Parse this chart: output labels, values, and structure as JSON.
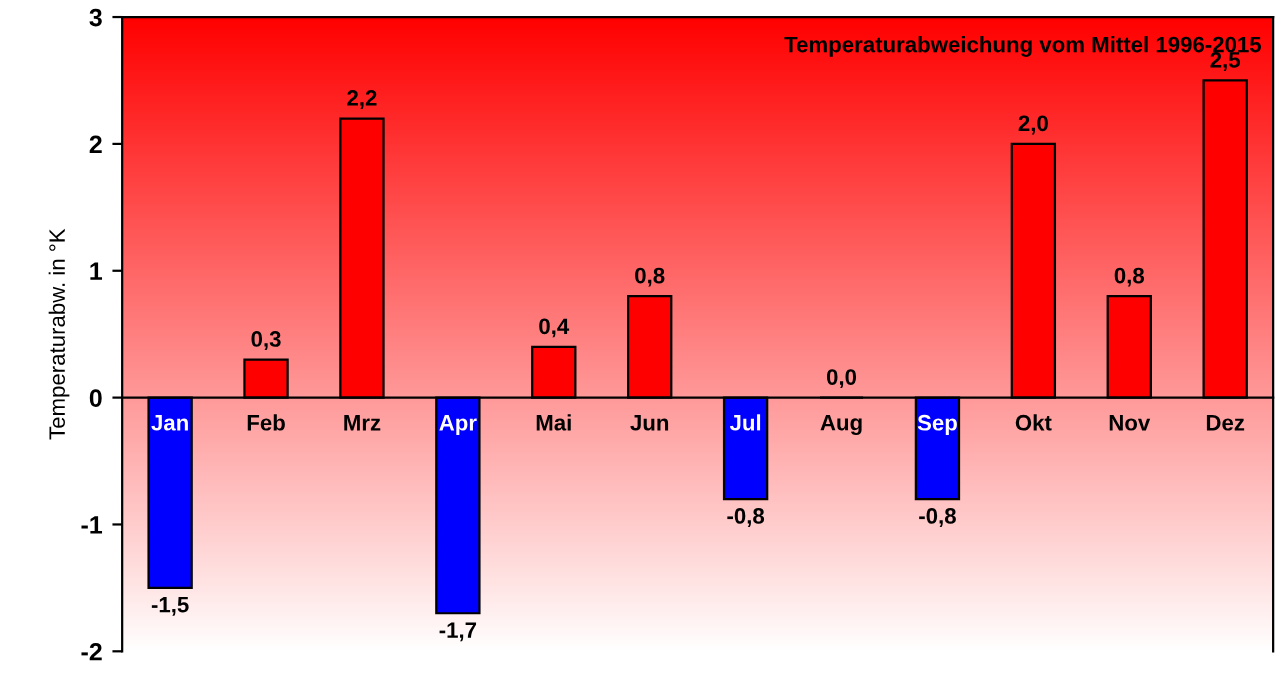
{
  "chart_data": {
    "type": "bar",
    "title": "Temperaturabweichung vom Mittel 1996-2015",
    "ylabel": "Temperaturabw. in °K",
    "categories": [
      "Jan",
      "Feb",
      "Mrz",
      "Apr",
      "Mai",
      "Jun",
      "Jul",
      "Aug",
      "Sep",
      "Okt",
      "Nov",
      "Dez"
    ],
    "values": [
      -1.5,
      0.3,
      2.2,
      -1.7,
      0.4,
      0.8,
      -0.8,
      0.0,
      -0.8,
      2.0,
      0.8,
      2.5
    ],
    "colors": [
      "#0000ff",
      "#ff0000",
      "#ff0000",
      "#0000ff",
      "#ff0000",
      "#ff0000",
      "#0000ff",
      "#ff0000",
      "#0000ff",
      "#ff0000",
      "#ff0000",
      "#ff0000"
    ],
    "value_labels": [
      "-1,5",
      "0,3",
      "2,2",
      "-1,7",
      "0,4",
      "0,8",
      "-0,8",
      "0,0",
      "-0,8",
      "2,0",
      "0,8",
      "2,5"
    ],
    "ylim": [
      -2,
      3
    ],
    "yticks": [
      -2,
      -1,
      0,
      1,
      2,
      3
    ],
    "grid": false,
    "legend": false
  }
}
